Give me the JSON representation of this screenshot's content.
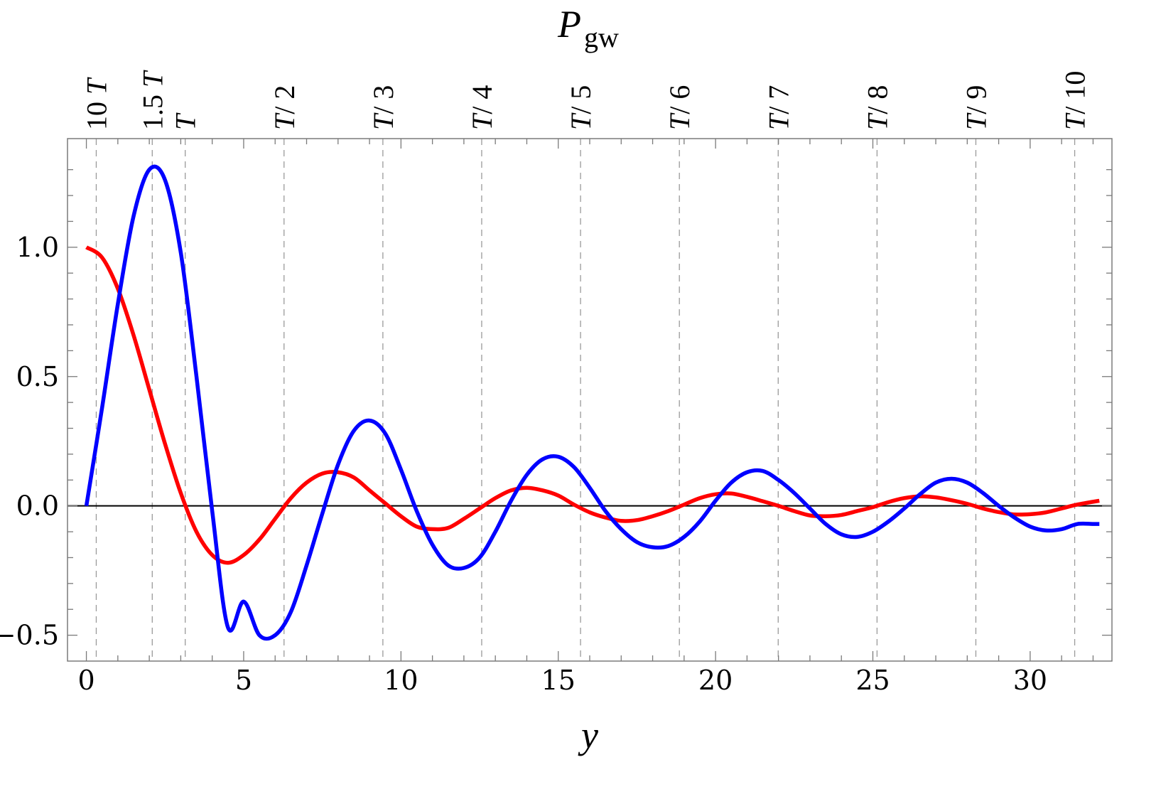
{
  "chart_data": {
    "type": "line",
    "title": "P",
    "title_subscript": "gw",
    "xlabel": "y",
    "ylabel": "",
    "xlim": [
      -0.6,
      32.6
    ],
    "ylim": [
      -0.6,
      1.42
    ],
    "grid": false,
    "frame": true,
    "x_ticks": [
      0,
      5,
      10,
      15,
      20,
      25,
      30
    ],
    "y_ticks": [
      -0.5,
      0.0,
      0.5,
      1.0
    ],
    "y_tick_labels": [
      "−0.5",
      "0.0",
      "0.5",
      "1.0"
    ],
    "zero_line": true,
    "reference_lines": [
      {
        "x": 0.314,
        "label_lines": [
          "10 T"
        ]
      },
      {
        "x": 2.094,
        "label_lines": [
          "1.5 T"
        ]
      },
      {
        "x": 3.142,
        "label_lines": [
          "T"
        ]
      },
      {
        "x": 6.283,
        "label_lines": [
          "T/ 2"
        ]
      },
      {
        "x": 9.425,
        "label_lines": [
          "T/ 3"
        ]
      },
      {
        "x": 12.566,
        "label_lines": [
          "T/ 4"
        ]
      },
      {
        "x": 15.708,
        "label_lines": [
          "T/ 5"
        ]
      },
      {
        "x": 18.85,
        "label_lines": [
          "T/ 6"
        ]
      },
      {
        "x": 21.991,
        "label_lines": [
          "T/ 7"
        ]
      },
      {
        "x": 25.133,
        "label_lines": [
          "T/ 8"
        ]
      },
      {
        "x": 28.274,
        "label_lines": [
          "T/ 9"
        ]
      },
      {
        "x": 31.416,
        "label_lines": [
          "T/ 10"
        ]
      }
    ],
    "series": [
      {
        "color": "#ff0000",
        "x": [
          0,
          0.5,
          1,
          1.5,
          2,
          2.5,
          3,
          3.5,
          4,
          4.5,
          5,
          5.5,
          6,
          6.5,
          7,
          7.5,
          8,
          8.5,
          9,
          9.5,
          10,
          10.5,
          11,
          11.5,
          12,
          12.5,
          13,
          13.5,
          14,
          14.5,
          15,
          15.5,
          16,
          16.5,
          17,
          17.5,
          18,
          18.5,
          19,
          19.5,
          20,
          20.5,
          21,
          21.5,
          22,
          22.5,
          23,
          23.5,
          24,
          24.5,
          25,
          25.5,
          26,
          26.5,
          27,
          27.5,
          28,
          28.5,
          29,
          29.5,
          30,
          30.5,
          31,
          31.5,
          32,
          32.2
        ],
        "y": [
          1.0,
          0.96,
          0.84,
          0.66,
          0.45,
          0.24,
          0.05,
          -0.1,
          -0.19,
          -0.22,
          -0.19,
          -0.13,
          -0.05,
          0.03,
          0.09,
          0.125,
          0.13,
          0.11,
          0.06,
          0.01,
          -0.04,
          -0.08,
          -0.09,
          -0.085,
          -0.05,
          -0.01,
          0.03,
          0.06,
          0.07,
          0.06,
          0.04,
          0.005,
          -0.025,
          -0.045,
          -0.058,
          -0.055,
          -0.04,
          -0.02,
          0.005,
          0.03,
          0.045,
          0.048,
          0.035,
          0.018,
          0.0,
          -0.02,
          -0.037,
          -0.04,
          -0.035,
          -0.02,
          -0.005,
          0.015,
          0.03,
          0.037,
          0.033,
          0.022,
          0.008,
          -0.01,
          -0.024,
          -0.033,
          -0.032,
          -0.025,
          -0.01,
          0.005,
          0.016,
          0.02
        ]
      },
      {
        "color": "#0000ff",
        "x": [
          0,
          0.5,
          1,
          1.5,
          2,
          2.5,
          3,
          3.5,
          4,
          4.5,
          5,
          5.5,
          6,
          6.5,
          7,
          7.5,
          8,
          8.5,
          9,
          9.5,
          10,
          10.5,
          11,
          11.5,
          12,
          12.5,
          13,
          13.5,
          14,
          14.5,
          15,
          15.5,
          16,
          16.5,
          17,
          17.5,
          18,
          18.5,
          19,
          19.5,
          20,
          20.5,
          21,
          21.5,
          22,
          22.5,
          23,
          23.5,
          24,
          24.5,
          25,
          25.5,
          26,
          26.5,
          27,
          27.5,
          28,
          28.5,
          29,
          29.5,
          30,
          30.5,
          31,
          31.5,
          32,
          32.2
        ],
        "y": [
          0.0,
          0.38,
          0.78,
          1.12,
          1.3,
          1.26,
          0.98,
          0.5,
          -0.02,
          -0.47,
          -0.37,
          -0.5,
          -0.5,
          -0.41,
          -0.23,
          -0.03,
          0.16,
          0.29,
          0.33,
          0.28,
          0.14,
          -0.02,
          -0.15,
          -0.23,
          -0.24,
          -0.2,
          -0.1,
          0.02,
          0.12,
          0.18,
          0.19,
          0.15,
          0.07,
          -0.02,
          -0.09,
          -0.14,
          -0.16,
          -0.155,
          -0.12,
          -0.06,
          0.02,
          0.09,
          0.13,
          0.135,
          0.1,
          0.05,
          -0.01,
          -0.07,
          -0.11,
          -0.12,
          -0.1,
          -0.06,
          -0.01,
          0.045,
          0.09,
          0.105,
          0.09,
          0.05,
          0.0,
          -0.045,
          -0.08,
          -0.095,
          -0.09,
          -0.07,
          -0.07,
          -0.07
        ]
      }
    ]
  }
}
